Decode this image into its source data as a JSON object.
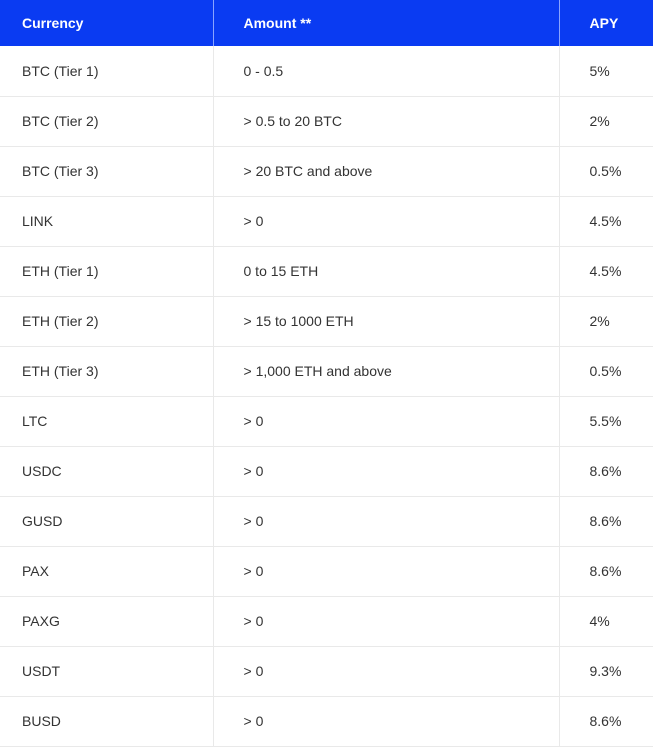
{
  "table": {
    "headers": {
      "currency": "Currency",
      "amount": "Amount **",
      "apy": "APY"
    },
    "rows": [
      {
        "currency": "BTC (Tier 1)",
        "amount": "0 - 0.5",
        "apy": "5%"
      },
      {
        "currency": "BTC (Tier 2)",
        "amount": "> 0.5 to 20 BTC",
        "apy": "2%"
      },
      {
        "currency": "BTC (Tier 3)",
        "amount": "> 20 BTC and above",
        "apy": "0.5%"
      },
      {
        "currency": "LINK",
        "amount": "> 0",
        "apy": "4.5%"
      },
      {
        "currency": "ETH (Tier 1)",
        "amount": "0 to 15 ETH",
        "apy": "4.5%"
      },
      {
        "currency": "ETH (Tier 2)",
        "amount": "> 15 to 1000 ETH",
        "apy": "2%"
      },
      {
        "currency": "ETH (Tier 3)",
        "amount": "> 1,000 ETH and above",
        "apy": "0.5%"
      },
      {
        "currency": "LTC",
        "amount": "> 0",
        "apy": "5.5%"
      },
      {
        "currency": "USDC",
        "amount": "> 0",
        "apy": "8.6%"
      },
      {
        "currency": "GUSD",
        "amount": "> 0",
        "apy": "8.6%"
      },
      {
        "currency": "PAX",
        "amount": "> 0",
        "apy": "8.6%"
      },
      {
        "currency": "PAXG",
        "amount": "> 0",
        "apy": "4%"
      },
      {
        "currency": "USDT",
        "amount": "> 0",
        "apy": "9.3%"
      },
      {
        "currency": "BUSD",
        "amount": "> 0",
        "apy": "8.6%"
      }
    ]
  },
  "colors": {
    "header_background": "#0a3bf2",
    "header_text": "#ffffff",
    "body_text": "#333333",
    "row_border": "#e9e9e9"
  }
}
